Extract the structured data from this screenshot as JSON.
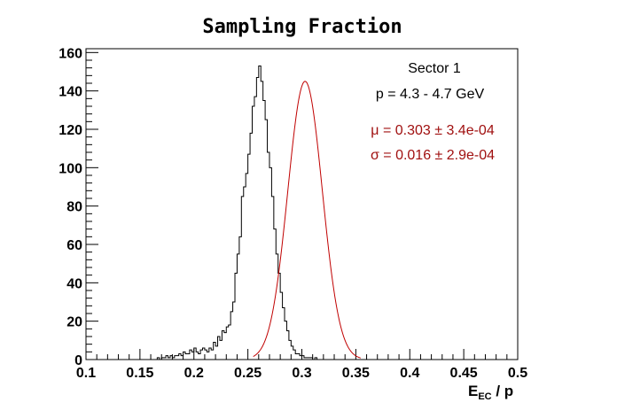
{
  "chart_data": {
    "type": "bar",
    "title": "Sampling Fraction",
    "xlabel_main": "E",
    "xlabel_sub": "EC",
    "xlabel_rest": " / p",
    "ylabel": "",
    "xlim": [
      0.1,
      0.5
    ],
    "ylim": [
      0,
      162
    ],
    "x_ticks": [
      "0.1",
      "0.15",
      "0.2",
      "0.25",
      "0.3",
      "0.35",
      "0.4",
      "0.45",
      "0.5"
    ],
    "x_tick_values": [
      0.1,
      0.15,
      0.2,
      0.25,
      0.3,
      0.35,
      0.4,
      0.45,
      0.5
    ],
    "y_ticks": [
      "0",
      "20",
      "40",
      "60",
      "80",
      "100",
      "120",
      "140",
      "160"
    ],
    "y_tick_values": [
      0,
      20,
      40,
      60,
      80,
      100,
      120,
      140,
      160
    ],
    "bin_start": 0.16,
    "bin_width": 0.002,
    "counts": [
      0,
      0,
      0,
      1,
      0,
      1,
      1,
      2,
      1,
      2,
      1,
      2,
      2,
      3,
      2,
      4,
      3,
      3,
      5,
      4,
      6,
      4,
      3,
      5,
      6,
      5,
      4,
      6,
      5,
      9,
      7,
      12,
      10,
      15,
      14,
      17,
      18,
      25,
      30,
      45,
      55,
      64,
      85,
      90,
      97,
      107,
      118,
      132,
      137,
      147,
      153,
      145,
      135,
      125,
      108,
      100,
      85,
      68,
      55,
      45,
      35,
      27,
      20,
      15,
      10,
      7,
      5,
      3,
      3,
      2,
      2,
      1,
      1,
      1,
      1,
      0,
      1,
      0,
      0,
      0,
      0,
      0,
      0,
      0,
      0,
      0,
      0,
      0,
      0,
      0,
      0
    ],
    "fit": {
      "mu": 0.303,
      "sigma": 0.016,
      "amplitude": 145
    },
    "stats": {
      "sector": "Sector 1",
      "momentum": "p = 4.3 - 4.7 GeV",
      "mu_line": "μ = 0.303 ± 3.4e-04",
      "sigma_line": "σ = 0.016 ± 2.9e-04"
    },
    "colors": {
      "histogram": "#000000",
      "fit": "#c00000",
      "fit_text": "#a01010",
      "axis": "#000000"
    },
    "legend_position": "top-right",
    "grid": false
  }
}
